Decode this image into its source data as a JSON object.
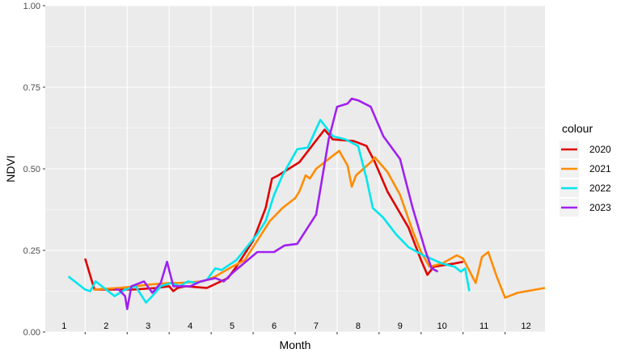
{
  "chart_data": {
    "type": "line",
    "xlabel": "Month",
    "ylabel": "NDVI",
    "xlim": [
      0.55,
      12.45
    ],
    "ylim": [
      0,
      1
    ],
    "x_ticks": [
      1.5,
      2.5,
      3.5,
      4.5,
      5.5,
      6.5,
      7.5,
      8.5,
      9.5,
      10.5,
      11.5
    ],
    "month_labels": [
      {
        "x": 1,
        "label": "1"
      },
      {
        "x": 2,
        "label": "2"
      },
      {
        "x": 3,
        "label": "3"
      },
      {
        "x": 4,
        "label": "4"
      },
      {
        "x": 5,
        "label": "5"
      },
      {
        "x": 6,
        "label": "6"
      },
      {
        "x": 7,
        "label": "7"
      },
      {
        "x": 8,
        "label": "8"
      },
      {
        "x": 9,
        "label": "9"
      },
      {
        "x": 10,
        "label": "10"
      },
      {
        "x": 11,
        "label": "11"
      },
      {
        "x": 12,
        "label": "12"
      }
    ],
    "y_ticks": [
      {
        "value": 0,
        "label": "0.00"
      },
      {
        "value": 0.25,
        "label": "0.25"
      },
      {
        "value": 0.5,
        "label": "0.50"
      },
      {
        "value": 0.75,
        "label": "0.75"
      },
      {
        "value": 1,
        "label": "1.00"
      }
    ],
    "grid": true,
    "panel_color": "#ebebeb",
    "legend": {
      "title": "colour",
      "position": "right"
    },
    "series": [
      {
        "name": "2020",
        "color": "#e00000",
        "points": [
          [
            1.5,
            0.225
          ],
          [
            1.72,
            0.13
          ],
          [
            2.3,
            0.13
          ],
          [
            2.65,
            0.13
          ],
          [
            3.2,
            0.135
          ],
          [
            3.5,
            0.14
          ],
          [
            3.6,
            0.125
          ],
          [
            3.7,
            0.135
          ],
          [
            3.9,
            0.14
          ],
          [
            4.4,
            0.135
          ],
          [
            4.9,
            0.165
          ],
          [
            5.1,
            0.2
          ],
          [
            5.5,
            0.28
          ],
          [
            5.8,
            0.38
          ],
          [
            5.95,
            0.47
          ],
          [
            6.1,
            0.48
          ],
          [
            6.6,
            0.52
          ],
          [
            6.9,
            0.57
          ],
          [
            7.2,
            0.62
          ],
          [
            7.4,
            0.59
          ],
          [
            7.9,
            0.585
          ],
          [
            8.2,
            0.57
          ],
          [
            8.4,
            0.52
          ],
          [
            8.7,
            0.43
          ],
          [
            9.2,
            0.32
          ],
          [
            9.5,
            0.22
          ],
          [
            9.65,
            0.175
          ],
          [
            9.8,
            0.2
          ],
          [
            10.3,
            0.21
          ],
          [
            10.5,
            0.215
          ]
        ]
      },
      {
        "name": "2021",
        "color": "#ff8c00",
        "points": [
          [
            1.7,
            0.13
          ],
          [
            2.3,
            0.135
          ],
          [
            2.7,
            0.14
          ],
          [
            3.0,
            0.145
          ],
          [
            3.5,
            0.15
          ],
          [
            3.7,
            0.15
          ],
          [
            4.3,
            0.155
          ],
          [
            4.6,
            0.17
          ],
          [
            5.0,
            0.2
          ],
          [
            5.3,
            0.22
          ],
          [
            5.6,
            0.28
          ],
          [
            5.9,
            0.34
          ],
          [
            6.2,
            0.38
          ],
          [
            6.5,
            0.41
          ],
          [
            6.6,
            0.43
          ],
          [
            6.75,
            0.48
          ],
          [
            6.85,
            0.47
          ],
          [
            7.0,
            0.5
          ],
          [
            7.2,
            0.52
          ],
          [
            7.4,
            0.54
          ],
          [
            7.55,
            0.555
          ],
          [
            7.75,
            0.51
          ],
          [
            7.85,
            0.445
          ],
          [
            7.95,
            0.48
          ],
          [
            8.3,
            0.52
          ],
          [
            8.4,
            0.535
          ],
          [
            8.7,
            0.49
          ],
          [
            9.0,
            0.42
          ],
          [
            9.3,
            0.31
          ],
          [
            9.5,
            0.245
          ],
          [
            9.7,
            0.2
          ],
          [
            10.0,
            0.21
          ],
          [
            10.35,
            0.235
          ],
          [
            10.5,
            0.225
          ],
          [
            10.8,
            0.15
          ],
          [
            10.95,
            0.23
          ],
          [
            11.1,
            0.245
          ],
          [
            11.3,
            0.17
          ],
          [
            11.5,
            0.105
          ],
          [
            11.8,
            0.12
          ],
          [
            12.45,
            0.135
          ]
        ]
      },
      {
        "name": "2022",
        "color": "#00e5ee",
        "points": [
          [
            1.1,
            0.17
          ],
          [
            1.25,
            0.155
          ],
          [
            1.5,
            0.13
          ],
          [
            1.62,
            0.125
          ],
          [
            1.75,
            0.155
          ],
          [
            1.95,
            0.135
          ],
          [
            2.2,
            0.11
          ],
          [
            2.45,
            0.13
          ],
          [
            2.7,
            0.14
          ],
          [
            2.95,
            0.09
          ],
          [
            3.1,
            0.11
          ],
          [
            3.3,
            0.14
          ],
          [
            3.55,
            0.15
          ],
          [
            3.75,
            0.14
          ],
          [
            3.95,
            0.155
          ],
          [
            4.15,
            0.15
          ],
          [
            4.4,
            0.16
          ],
          [
            4.6,
            0.195
          ],
          [
            4.75,
            0.19
          ],
          [
            5.1,
            0.22
          ],
          [
            5.6,
            0.3
          ],
          [
            5.8,
            0.34
          ],
          [
            6.0,
            0.42
          ],
          [
            6.2,
            0.48
          ],
          [
            6.55,
            0.56
          ],
          [
            6.8,
            0.565
          ],
          [
            7.1,
            0.65
          ],
          [
            7.4,
            0.6
          ],
          [
            7.7,
            0.59
          ],
          [
            8.0,
            0.57
          ],
          [
            8.2,
            0.47
          ],
          [
            8.35,
            0.38
          ],
          [
            8.6,
            0.35
          ],
          [
            8.9,
            0.3
          ],
          [
            9.2,
            0.26
          ],
          [
            9.55,
            0.235
          ],
          [
            10.0,
            0.21
          ],
          [
            10.3,
            0.2
          ],
          [
            10.45,
            0.185
          ],
          [
            10.55,
            0.195
          ],
          [
            10.65,
            0.125
          ]
        ]
      },
      {
        "name": "2023",
        "color": "#a020f0",
        "points": [
          [
            2.2,
            0.13
          ],
          [
            2.3,
            0.13
          ],
          [
            2.45,
            0.11
          ],
          [
            2.5,
            0.07
          ],
          [
            2.6,
            0.14
          ],
          [
            2.9,
            0.155
          ],
          [
            3.1,
            0.12
          ],
          [
            3.3,
            0.15
          ],
          [
            3.45,
            0.215
          ],
          [
            3.6,
            0.14
          ],
          [
            4.0,
            0.14
          ],
          [
            4.25,
            0.155
          ],
          [
            4.6,
            0.165
          ],
          [
            4.8,
            0.155
          ],
          [
            5.0,
            0.18
          ],
          [
            5.6,
            0.245
          ],
          [
            6.0,
            0.245
          ],
          [
            6.25,
            0.265
          ],
          [
            6.55,
            0.27
          ],
          [
            7.0,
            0.36
          ],
          [
            7.3,
            0.59
          ],
          [
            7.5,
            0.69
          ],
          [
            7.75,
            0.7
          ],
          [
            7.85,
            0.715
          ],
          [
            8.0,
            0.71
          ],
          [
            8.3,
            0.69
          ],
          [
            8.6,
            0.6
          ],
          [
            9.0,
            0.53
          ],
          [
            9.3,
            0.38
          ],
          [
            9.6,
            0.25
          ],
          [
            9.75,
            0.195
          ],
          [
            9.9,
            0.185
          ]
        ]
      }
    ]
  }
}
